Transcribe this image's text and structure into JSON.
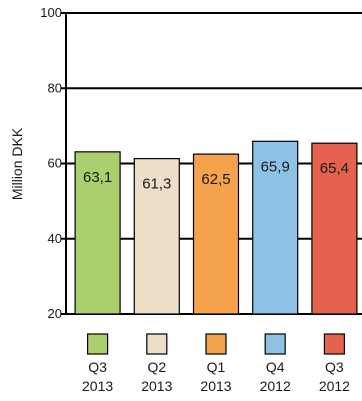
{
  "chart_data": {
    "type": "bar",
    "ylabel": "Million DKK",
    "ylim": [
      20,
      100
    ],
    "yticks": [
      20,
      40,
      60,
      80,
      100
    ],
    "grid": true,
    "categories": [
      {
        "line1": "Q3",
        "line2": "2013"
      },
      {
        "line1": "Q2",
        "line2": "2013"
      },
      {
        "line1": "Q1",
        "line2": "2013"
      },
      {
        "line1": "Q4",
        "line2": "2012"
      },
      {
        "line1": "Q3",
        "line2": "2012"
      }
    ],
    "values": [
      63.1,
      61.3,
      62.5,
      65.9,
      65.4
    ],
    "value_labels": [
      "63,1",
      "61,3",
      "62,5",
      "65,9",
      "65,4"
    ],
    "colors": [
      "#a9cf6e",
      "#ecdec7",
      "#f5a24c",
      "#8ec3e6",
      "#e5624f"
    ]
  }
}
